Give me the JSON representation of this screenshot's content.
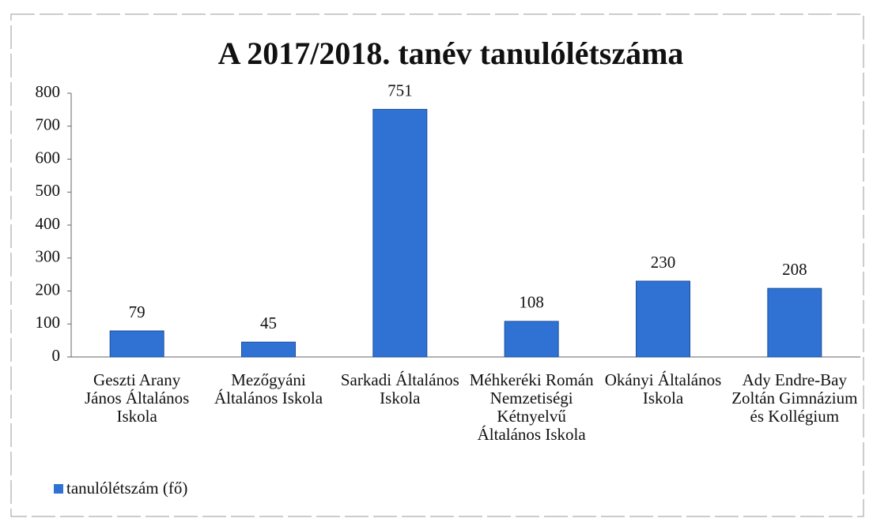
{
  "chart_data": {
    "type": "bar",
    "title": "A 2017/2018. tanév tanulólétszáma",
    "categories": [
      "Geszti Arany János Általános Iskola",
      "Mezőgyáni Általános Iskola",
      "Sarkadi Általános Iskola",
      "Méhkeréki Román Nemzetiségi Kétnyelvű Általános Iskola",
      "Okányi Általános Iskola",
      "Ady Endre-Bay Zoltán Gimnázium és Kollégium"
    ],
    "series": [
      {
        "name": "tanulólétszám (fő)",
        "color": "#2f72d4",
        "values": [
          79,
          45,
          751,
          108,
          230,
          208
        ]
      }
    ],
    "ylim": [
      0,
      800
    ],
    "yticks": [
      0,
      100,
      200,
      300,
      400,
      500,
      600,
      700,
      800
    ],
    "legend": "bottom-left"
  }
}
